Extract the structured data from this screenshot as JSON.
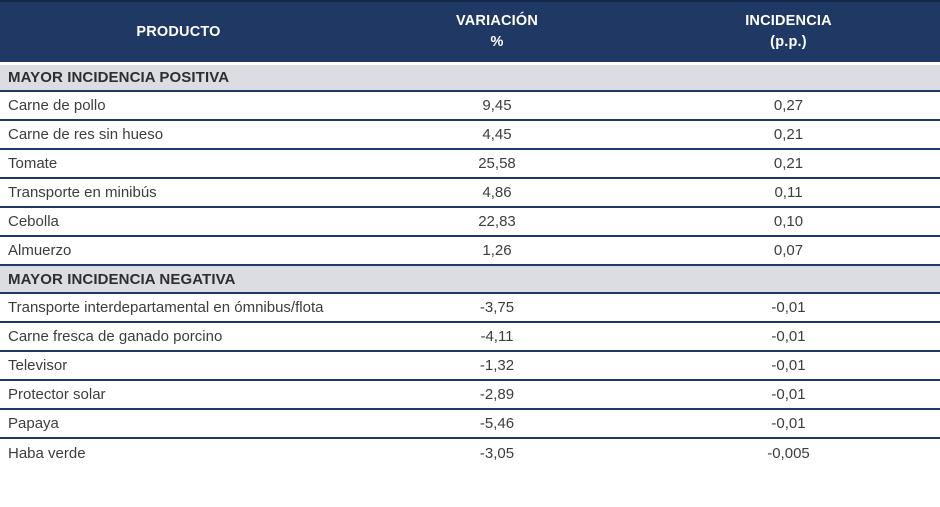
{
  "colors": {
    "header_bg": "#1f3864",
    "header_top_border": "#16294a",
    "section_bg": "#dcdde3",
    "separator_line": "#1f3864",
    "header_text": "#ffffff",
    "body_text": "#3d3d3d"
  },
  "table": {
    "columns": [
      {
        "line1": "PRODUCTO",
        "line2": ""
      },
      {
        "line1": "VARIACIÓN",
        "line2": "%"
      },
      {
        "line1": "INCIDENCIA",
        "line2": "(p.p.)"
      }
    ],
    "sections": [
      {
        "title": "MAYOR INCIDENCIA POSITIVA",
        "rows": [
          {
            "producto": "Carne de pollo",
            "variacion": "9,45",
            "incidencia": "0,27"
          },
          {
            "producto": "Carne de res sin hueso",
            "variacion": "4,45",
            "incidencia": "0,21"
          },
          {
            "producto": "Tomate",
            "variacion": "25,58",
            "incidencia": "0,21"
          },
          {
            "producto": "Transporte en minibús",
            "variacion": "4,86",
            "incidencia": "0,11"
          },
          {
            "producto": "Cebolla",
            "variacion": "22,83",
            "incidencia": "0,10"
          },
          {
            "producto": "Almuerzo",
            "variacion": "1,26",
            "incidencia": "0,07"
          }
        ]
      },
      {
        "title": "MAYOR INCIDENCIA NEGATIVA",
        "rows": [
          {
            "producto": "Transporte interdepartamental en ómnibus/flota",
            "variacion": "-3,75",
            "incidencia": "-0,01"
          },
          {
            "producto": "Carne fresca de ganado porcino",
            "variacion": "-4,11",
            "incidencia": "-0,01"
          },
          {
            "producto": "Televisor",
            "variacion": "-1,32",
            "incidencia": "-0,01"
          },
          {
            "producto": "Protector solar",
            "variacion": "-2,89",
            "incidencia": "-0,01"
          },
          {
            "producto": "Papaya",
            "variacion": "-5,46",
            "incidencia": "-0,01"
          },
          {
            "producto": "Haba verde",
            "variacion": "-3,05",
            "incidencia": "-0,005"
          }
        ]
      }
    ]
  }
}
